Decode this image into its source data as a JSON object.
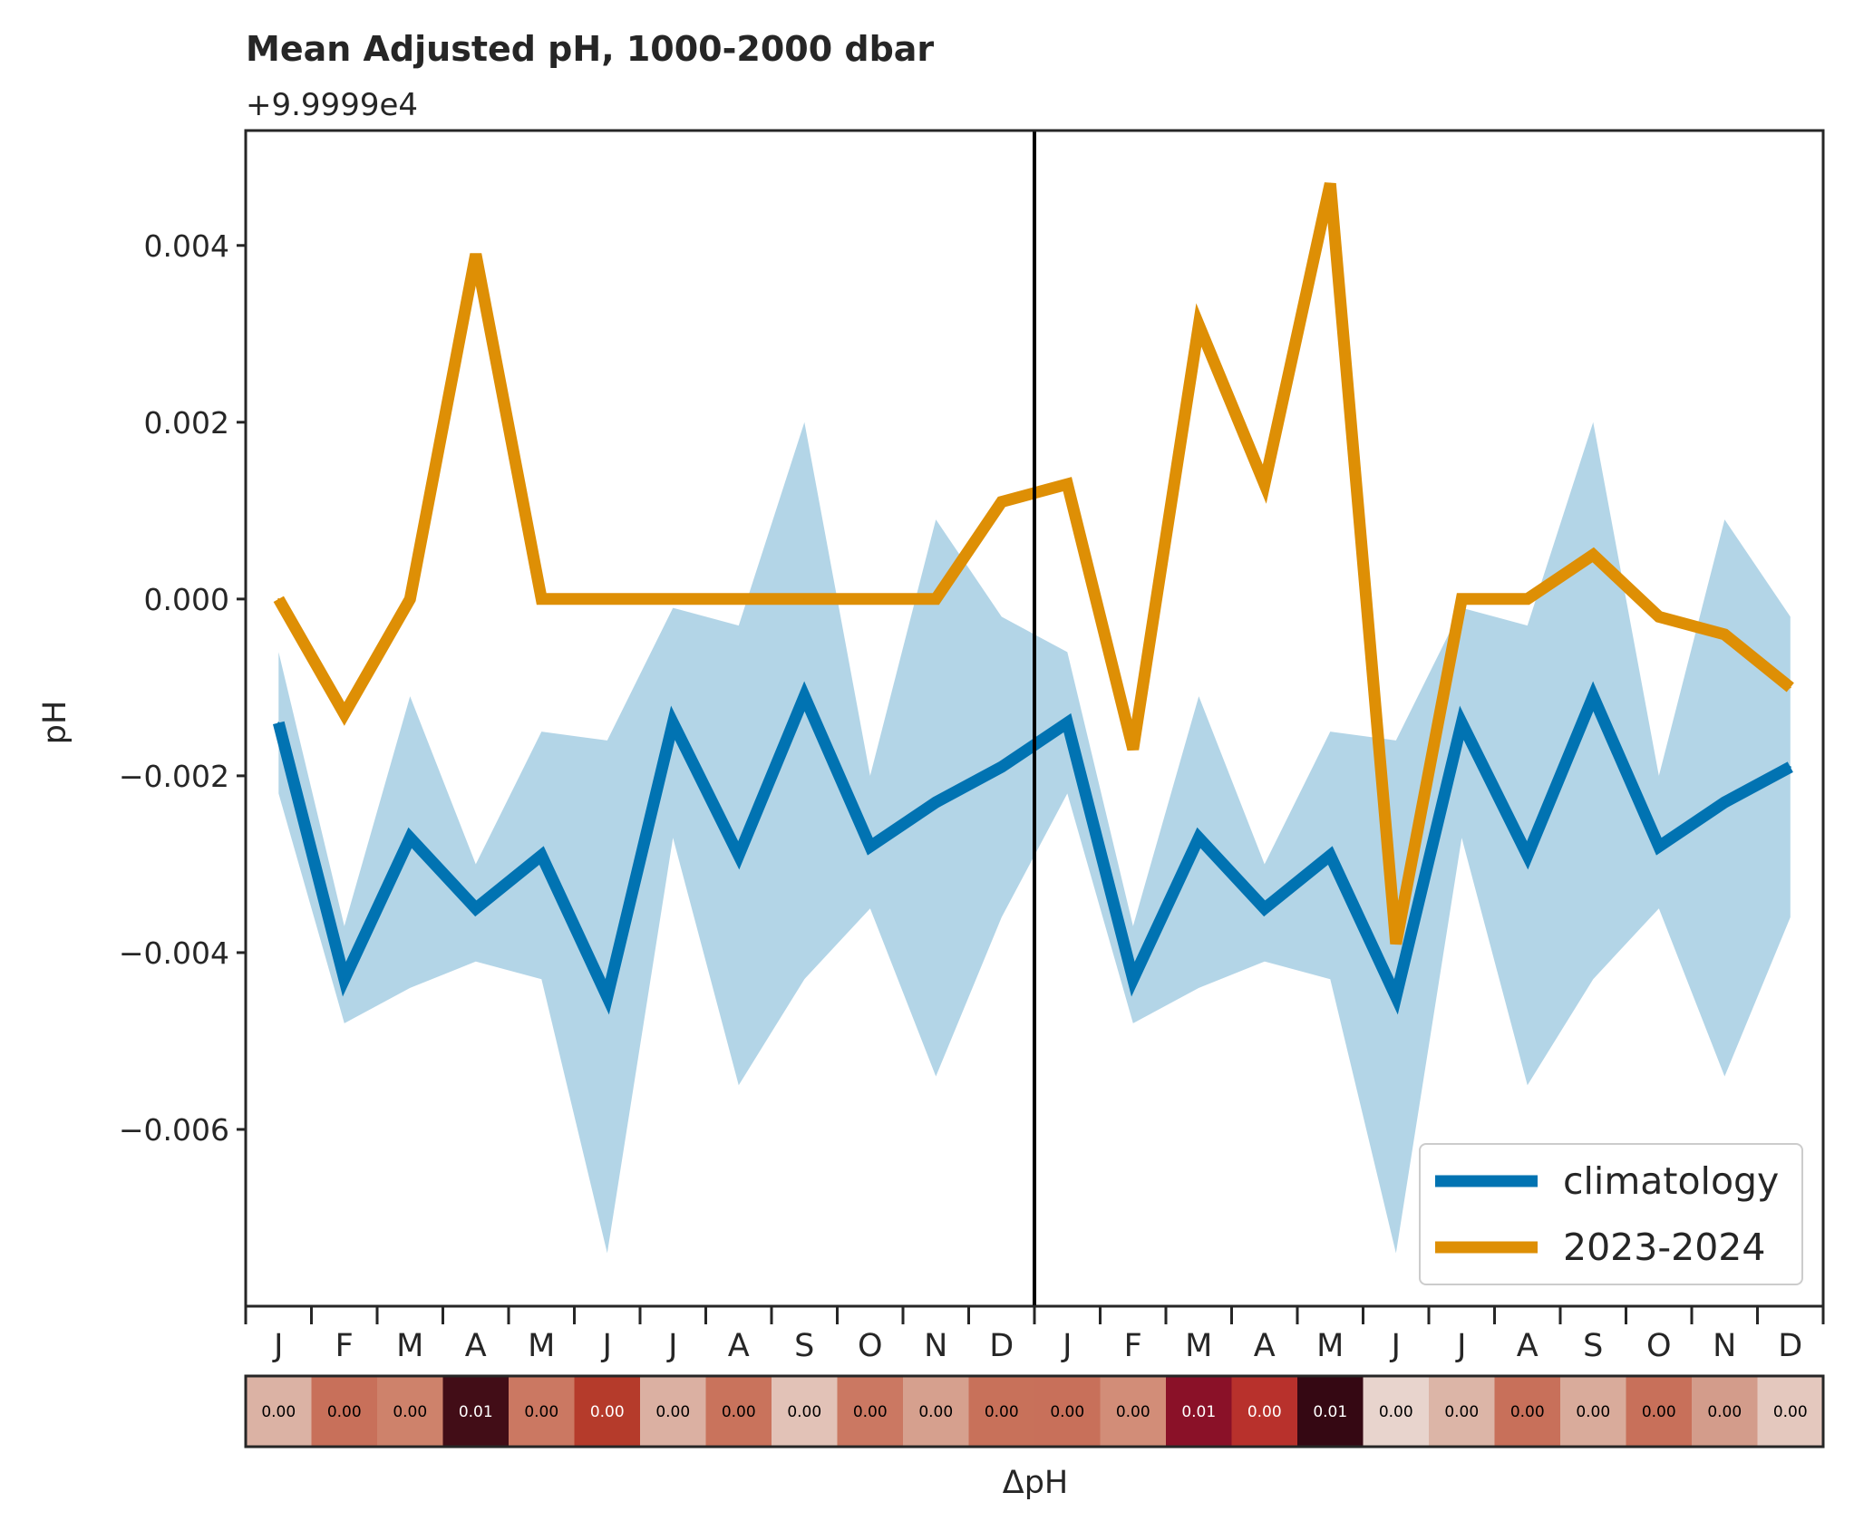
{
  "chart_data": {
    "type": "line",
    "title": "Mean Adjusted pH, 1000-2000 dbar",
    "offset_text": "+9.9999e4",
    "ylabel": "pH",
    "xlabel": "ΔpH",
    "ylim": [
      -0.008,
      0.0053
    ],
    "yticks": [
      0.004,
      0.002,
      0.0,
      -0.002,
      -0.004,
      -0.006
    ],
    "ytick_labels": [
      "0.004",
      "0.002",
      "0.000",
      "−0.002",
      "−0.004",
      "−0.006"
    ],
    "categories": [
      "J",
      "F",
      "M",
      "A",
      "M",
      "J",
      "J",
      "A",
      "S",
      "O",
      "N",
      "D",
      "J",
      "F",
      "M",
      "A",
      "M",
      "J",
      "J",
      "A",
      "S",
      "O",
      "N",
      "D"
    ],
    "series": [
      {
        "name": "climatology",
        "color": "#0173b2",
        "values": [
          -0.0014,
          -0.0043,
          -0.0027,
          -0.0035,
          -0.0029,
          -0.0045,
          -0.0014,
          -0.0029,
          -0.0011,
          -0.0028,
          -0.0023,
          -0.0019,
          -0.0014,
          -0.0043,
          -0.0027,
          -0.0035,
          -0.0029,
          -0.0045,
          -0.0014,
          -0.0029,
          -0.0011,
          -0.0028,
          -0.0023,
          -0.0019
        ]
      },
      {
        "name": "2023-2024",
        "color": "#de8f05",
        "values": [
          0.0,
          -0.0013,
          0.0,
          0.0039,
          0.0,
          0.0,
          0.0,
          0.0,
          0.0,
          0.0,
          0.0,
          0.0011,
          0.0013,
          -0.0017,
          0.0031,
          0.0013,
          0.0047,
          -0.0039,
          0.0,
          0.0,
          0.0005,
          -0.0002,
          -0.0004,
          -0.001
        ]
      }
    ],
    "band": {
      "color": "#a6cee3",
      "upper": [
        -0.0006,
        -0.0037,
        -0.0011,
        -0.003,
        -0.0015,
        -0.0016,
        -0.0001,
        -0.0003,
        0.002,
        -0.002,
        0.0009,
        -0.0002,
        -0.0006,
        -0.0037,
        -0.0011,
        -0.003,
        -0.0015,
        -0.0016,
        -0.0001,
        -0.0003,
        0.002,
        -0.002,
        0.0009,
        -0.0002
      ],
      "lower": [
        -0.0022,
        -0.0048,
        -0.0044,
        -0.0041,
        -0.0043,
        -0.0074,
        -0.0027,
        -0.0055,
        -0.0043,
        -0.0035,
        -0.0054,
        -0.0036,
        -0.0022,
        -0.0048,
        -0.0044,
        -0.0041,
        -0.0043,
        -0.0074,
        -0.0027,
        -0.0055,
        -0.0043,
        -0.0035,
        -0.0054,
        -0.0036
      ]
    },
    "divider_after_index": 11.5,
    "legend": {
      "placement": "lower-right",
      "entries": [
        "climatology",
        "2023-2024"
      ]
    },
    "heatmap": {
      "label": "ΔpH",
      "values": [
        "0.00",
        "0.00",
        "0.00",
        "0.01",
        "0.00",
        "0.00",
        "0.00",
        "0.00",
        "0.00",
        "0.00",
        "0.00",
        "0.00",
        "0.00",
        "0.00",
        "0.01",
        "0.00",
        "0.01",
        "0.00",
        "0.00",
        "0.00",
        "0.00",
        "0.00",
        "0.00",
        "0.00"
      ],
      "colors": [
        "#dbb2a4",
        "#c8705a",
        "#ce826b",
        "#420d17",
        "#cb7862",
        "#b53b2b",
        "#dbb0a2",
        "#c9735c",
        "#e2c2b7",
        "#cb7862",
        "#d6a08e",
        "#c8715a",
        "#c8705a",
        "#d28d78",
        "#8a1128",
        "#b8312c",
        "#350813",
        "#e8d4cd",
        "#dcb5a7",
        "#c8705a",
        "#d9ab9b",
        "#c8705a",
        "#d39c8b",
        "#e4c8be"
      ],
      "text_colors": [
        "#000000",
        "#000000",
        "#000000",
        "#ffffff",
        "#000000",
        "#ffffff",
        "#000000",
        "#000000",
        "#000000",
        "#000000",
        "#000000",
        "#000000",
        "#000000",
        "#000000",
        "#ffffff",
        "#ffffff",
        "#ffffff",
        "#000000",
        "#000000",
        "#000000",
        "#000000",
        "#000000",
        "#000000",
        "#000000"
      ]
    }
  }
}
